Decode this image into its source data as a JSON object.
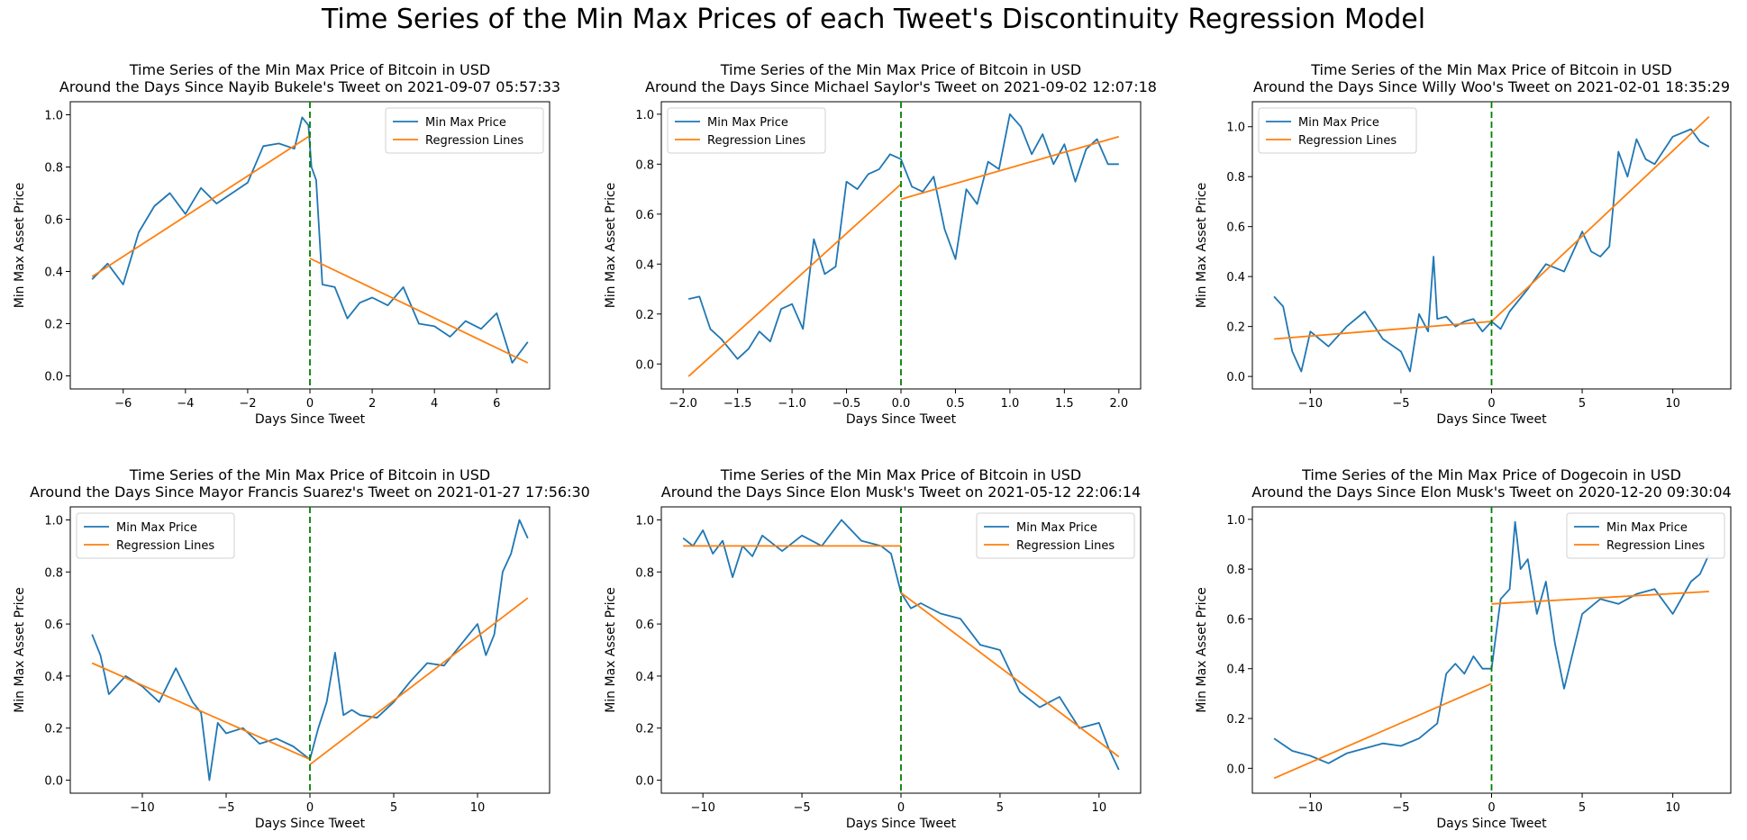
{
  "suptitle": "Time Series of the Min Max Prices of each Tweet's Discontinuity Regression Model",
  "colors": {
    "series": "#1f77b4",
    "regression": "#ff7f0e",
    "tweet_line": "#008000"
  },
  "chart_data": [
    {
      "type": "line",
      "title": "Time Series of the Min Max Price of Bitcoin in USD\nAround the Days Since Nayib Bukele's Tweet on 2021-09-07 05:57:33",
      "xlabel": "Days Since Tweet",
      "ylabel": "Min Max Asset Price",
      "xlim": [
        -7.7,
        7.7
      ],
      "ylim": [
        -0.05,
        1.05
      ],
      "xticks": [
        -6,
        -4,
        -2,
        0,
        2,
        4,
        6
      ],
      "xtick_labels": [
        "−6",
        "−4",
        "−2",
        "0",
        "2",
        "4",
        "6"
      ],
      "yticks": [
        0.0,
        0.2,
        0.4,
        0.6,
        0.8,
        1.0
      ],
      "ytick_labels": [
        "0.0",
        "0.2",
        "0.4",
        "0.6",
        "0.8",
        "1.0"
      ],
      "legend_position": "upper right",
      "legend": [
        "Min Max Price",
        "Regression Lines"
      ],
      "tweet_x": 0,
      "series": [
        {
          "name": "Min Max Price",
          "x": [
            -7,
            -6.5,
            -6,
            -5.5,
            -5,
            -4.5,
            -4,
            -3.5,
            -3,
            -2.5,
            -2,
            -1.5,
            -1,
            -0.5,
            -0.25,
            -0.05,
            0.05,
            0.2,
            0.4,
            0.8,
            1.2,
            1.6,
            2,
            2.5,
            3,
            3.5,
            4,
            4.5,
            5,
            5.5,
            6,
            6.5,
            7
          ],
          "y": [
            0.37,
            0.43,
            0.35,
            0.55,
            0.65,
            0.7,
            0.62,
            0.72,
            0.66,
            0.7,
            0.74,
            0.88,
            0.89,
            0.87,
            0.99,
            0.96,
            0.8,
            0.75,
            0.35,
            0.34,
            0.22,
            0.28,
            0.3,
            0.27,
            0.34,
            0.2,
            0.19,
            0.15,
            0.21,
            0.18,
            0.24,
            0.05,
            0.13
          ]
        }
      ],
      "regression": [
        {
          "x": [
            -7,
            0
          ],
          "y": [
            0.38,
            0.92
          ]
        },
        {
          "x": [
            0,
            7
          ],
          "y": [
            0.45,
            0.05
          ]
        }
      ]
    },
    {
      "type": "line",
      "title": "Time Series of the Min Max Price of Bitcoin in USD\nAround the Days Since Michael Saylor's Tweet on 2021-09-02 12:07:18",
      "xlabel": "Days Since Tweet",
      "ylabel": "Min Max Asset Price",
      "xlim": [
        -2.2,
        2.2
      ],
      "ylim": [
        -0.1,
        1.05
      ],
      "xticks": [
        -2.0,
        -1.5,
        -1.0,
        -0.5,
        0.0,
        0.5,
        1.0,
        1.5,
        2.0
      ],
      "xtick_labels": [
        "−2.0",
        "−1.5",
        "−1.0",
        "−0.5",
        "0.0",
        "0.5",
        "1.0",
        "1.5",
        "2.0"
      ],
      "yticks": [
        0.0,
        0.2,
        0.4,
        0.6,
        0.8,
        1.0
      ],
      "ytick_labels": [
        "0.0",
        "0.2",
        "0.4",
        "0.6",
        "0.8",
        "1.0"
      ],
      "legend_position": "upper left",
      "legend": [
        "Min Max Price",
        "Regression Lines"
      ],
      "tweet_x": 0,
      "series": [
        {
          "name": "Min Max Price",
          "x": [
            -1.95,
            -1.85,
            -1.75,
            -1.65,
            -1.5,
            -1.4,
            -1.3,
            -1.2,
            -1.1,
            -1.0,
            -0.9,
            -0.8,
            -0.7,
            -0.6,
            -0.5,
            -0.4,
            -0.3,
            -0.2,
            -0.1,
            0.0,
            0.1,
            0.2,
            0.3,
            0.4,
            0.5,
            0.6,
            0.7,
            0.8,
            0.9,
            1.0,
            1.1,
            1.2,
            1.3,
            1.4,
            1.5,
            1.6,
            1.7,
            1.8,
            1.9,
            2.0
          ],
          "y": [
            0.26,
            0.27,
            0.14,
            0.1,
            0.02,
            0.06,
            0.13,
            0.09,
            0.22,
            0.24,
            0.14,
            0.5,
            0.36,
            0.39,
            0.73,
            0.7,
            0.76,
            0.78,
            0.84,
            0.82,
            0.71,
            0.69,
            0.75,
            0.54,
            0.42,
            0.7,
            0.64,
            0.81,
            0.78,
            1.0,
            0.95,
            0.84,
            0.92,
            0.8,
            0.88,
            0.73,
            0.86,
            0.9,
            0.8,
            0.8
          ]
        }
      ],
      "regression": [
        {
          "x": [
            -1.95,
            0
          ],
          "y": [
            -0.05,
            0.72
          ]
        },
        {
          "x": [
            0,
            2.0
          ],
          "y": [
            0.66,
            0.91
          ]
        }
      ]
    },
    {
      "type": "line",
      "title": "Time Series of the Min Max Price of Bitcoin in USD\nAround the Days Since Willy Woo's Tweet on 2021-02-01 18:35:29",
      "xlabel": "Days Since Tweet",
      "ylabel": "Min Max Asset Price",
      "xlim": [
        -13.2,
        13.2
      ],
      "ylim": [
        -0.05,
        1.1
      ],
      "xticks": [
        -10,
        -5,
        0,
        5,
        10
      ],
      "xtick_labels": [
        "−10",
        "−5",
        "0",
        "5",
        "10"
      ],
      "yticks": [
        0.0,
        0.2,
        0.4,
        0.6,
        0.8,
        1.0
      ],
      "ytick_labels": [
        "0.0",
        "0.2",
        "0.4",
        "0.6",
        "0.8",
        "1.0"
      ],
      "legend_position": "upper left",
      "legend": [
        "Min Max Price",
        "Regression Lines"
      ],
      "tweet_x": 0,
      "series": [
        {
          "name": "Min Max Price",
          "x": [
            -12,
            -11.5,
            -11,
            -10.5,
            -10,
            -9,
            -8,
            -7,
            -6,
            -5,
            -4.5,
            -4,
            -3.5,
            -3.2,
            -3,
            -2.5,
            -2,
            -1.5,
            -1,
            -0.5,
            0,
            0.5,
            1,
            2,
            3,
            4,
            5,
            5.5,
            6,
            6.5,
            7,
            7.5,
            8,
            8.5,
            9,
            10,
            11,
            11.5,
            12
          ],
          "y": [
            0.32,
            0.28,
            0.1,
            0.02,
            0.18,
            0.12,
            0.2,
            0.26,
            0.15,
            0.1,
            0.02,
            0.25,
            0.18,
            0.48,
            0.23,
            0.24,
            0.2,
            0.22,
            0.23,
            0.18,
            0.22,
            0.19,
            0.26,
            0.35,
            0.45,
            0.42,
            0.58,
            0.5,
            0.48,
            0.52,
            0.9,
            0.8,
            0.95,
            0.87,
            0.85,
            0.96,
            0.99,
            0.94,
            0.92
          ]
        }
      ],
      "regression": [
        {
          "x": [
            -12,
            0
          ],
          "y": [
            0.15,
            0.22
          ]
        },
        {
          "x": [
            0,
            12
          ],
          "y": [
            0.22,
            1.04
          ]
        }
      ]
    },
    {
      "type": "line",
      "title": "Time Series of the Min Max Price of Bitcoin in USD\nAround the Days Since Mayor Francis Suarez's Tweet on 2021-01-27 17:56:30",
      "xlabel": "Days Since Tweet",
      "ylabel": "Min Max Asset Price",
      "xlim": [
        -14.3,
        14.3
      ],
      "ylim": [
        -0.05,
        1.05
      ],
      "xticks": [
        -10,
        -5,
        0,
        5,
        10
      ],
      "xtick_labels": [
        "−10",
        "−5",
        "0",
        "5",
        "10"
      ],
      "yticks": [
        0.0,
        0.2,
        0.4,
        0.6,
        0.8,
        1.0
      ],
      "ytick_labels": [
        "0.0",
        "0.2",
        "0.4",
        "0.6",
        "0.8",
        "1.0"
      ],
      "legend_position": "upper left",
      "legend": [
        "Min Max Price",
        "Regression Lines"
      ],
      "tweet_x": 0,
      "series": [
        {
          "name": "Min Max Price",
          "x": [
            -13,
            -12.5,
            -12,
            -11,
            -10,
            -9,
            -8,
            -7,
            -6.5,
            -6,
            -5.5,
            -5,
            -4,
            -3,
            -2,
            -1,
            0,
            0.5,
            1,
            1.5,
            2,
            2.5,
            3,
            4,
            5,
            6,
            7,
            8,
            9,
            10,
            10.5,
            11,
            11.5,
            12,
            12.5,
            13
          ],
          "y": [
            0.56,
            0.48,
            0.33,
            0.4,
            0.36,
            0.3,
            0.43,
            0.3,
            0.26,
            0.0,
            0.22,
            0.18,
            0.2,
            0.14,
            0.16,
            0.13,
            0.08,
            0.2,
            0.3,
            0.49,
            0.25,
            0.27,
            0.25,
            0.24,
            0.3,
            0.38,
            0.45,
            0.44,
            0.52,
            0.6,
            0.48,
            0.56,
            0.8,
            0.87,
            1.0,
            0.93
          ]
        }
      ],
      "regression": [
        {
          "x": [
            -13,
            0
          ],
          "y": [
            0.45,
            0.08
          ]
        },
        {
          "x": [
            0,
            13
          ],
          "y": [
            0.06,
            0.7
          ]
        }
      ]
    },
    {
      "type": "line",
      "title": "Time Series of the Min Max Price of Bitcoin in USD\nAround the Days Since Elon Musk's Tweet on 2021-05-12 22:06:14",
      "xlabel": "Days Since Tweet",
      "ylabel": "Min Max Asset Price",
      "xlim": [
        -12.1,
        12.1
      ],
      "ylim": [
        -0.05,
        1.05
      ],
      "xticks": [
        -10,
        -5,
        0,
        5,
        10
      ],
      "xtick_labels": [
        "−10",
        "−5",
        "0",
        "5",
        "10"
      ],
      "yticks": [
        0.0,
        0.2,
        0.4,
        0.6,
        0.8,
        1.0
      ],
      "ytick_labels": [
        "0.0",
        "0.2",
        "0.4",
        "0.6",
        "0.8",
        "1.0"
      ],
      "legend_position": "upper right",
      "legend": [
        "Min Max Price",
        "Regression Lines"
      ],
      "tweet_x": 0,
      "series": [
        {
          "name": "Min Max Price",
          "x": [
            -11,
            -10.5,
            -10,
            -9.5,
            -9,
            -8.5,
            -8,
            -7.5,
            -7,
            -6,
            -5,
            -4,
            -3,
            -2,
            -1,
            -0.5,
            0,
            0.5,
            1,
            2,
            3,
            4,
            5,
            6,
            7,
            8,
            9,
            10,
            10.5,
            11
          ],
          "y": [
            0.93,
            0.9,
            0.96,
            0.87,
            0.92,
            0.78,
            0.9,
            0.86,
            0.94,
            0.88,
            0.94,
            0.9,
            1.0,
            0.92,
            0.9,
            0.87,
            0.72,
            0.66,
            0.68,
            0.64,
            0.62,
            0.52,
            0.5,
            0.34,
            0.28,
            0.32,
            0.2,
            0.22,
            0.12,
            0.04
          ]
        }
      ],
      "regression": [
        {
          "x": [
            -11,
            0
          ],
          "y": [
            0.9,
            0.9
          ]
        },
        {
          "x": [
            0,
            11
          ],
          "y": [
            0.72,
            0.09
          ]
        }
      ]
    },
    {
      "type": "line",
      "title": "Time Series of the Min Max Price of Dogecoin in USD\nAround the Days Since Elon Musk's Tweet on 2020-12-20 09:30:04",
      "xlabel": "Days Since Tweet",
      "ylabel": "Min Max Asset Price",
      "xlim": [
        -13.2,
        13.2
      ],
      "ylim": [
        -0.1,
        1.05
      ],
      "xticks": [
        -10,
        -5,
        0,
        5,
        10
      ],
      "xtick_labels": [
        "−10",
        "−5",
        "0",
        "5",
        "10"
      ],
      "yticks": [
        0.0,
        0.2,
        0.4,
        0.6,
        0.8,
        1.0
      ],
      "ytick_labels": [
        "0.0",
        "0.2",
        "0.4",
        "0.6",
        "0.8",
        "1.0"
      ],
      "legend_position": "upper right",
      "legend": [
        "Min Max Price",
        "Regression Lines"
      ],
      "tweet_x": 0,
      "series": [
        {
          "name": "Min Max Price",
          "x": [
            -12,
            -11,
            -10,
            -9,
            -8,
            -7,
            -6,
            -5,
            -4,
            -3,
            -2.5,
            -2,
            -1.5,
            -1,
            -0.5,
            0,
            0.5,
            1,
            1.3,
            1.6,
            2,
            2.5,
            3,
            3.5,
            4,
            5,
            6,
            7,
            8,
            9,
            10,
            11,
            11.5,
            12
          ],
          "y": [
            0.12,
            0.07,
            0.05,
            0.02,
            0.06,
            0.08,
            0.1,
            0.09,
            0.12,
            0.18,
            0.38,
            0.42,
            0.38,
            0.45,
            0.4,
            0.4,
            0.68,
            0.72,
            0.99,
            0.8,
            0.84,
            0.62,
            0.75,
            0.5,
            0.32,
            0.62,
            0.68,
            0.66,
            0.7,
            0.72,
            0.62,
            0.75,
            0.78,
            0.86
          ]
        }
      ],
      "regression": [
        {
          "x": [
            -12,
            0
          ],
          "y": [
            -0.04,
            0.34
          ]
        },
        {
          "x": [
            0,
            12
          ],
          "y": [
            0.66,
            0.71
          ]
        }
      ]
    }
  ]
}
